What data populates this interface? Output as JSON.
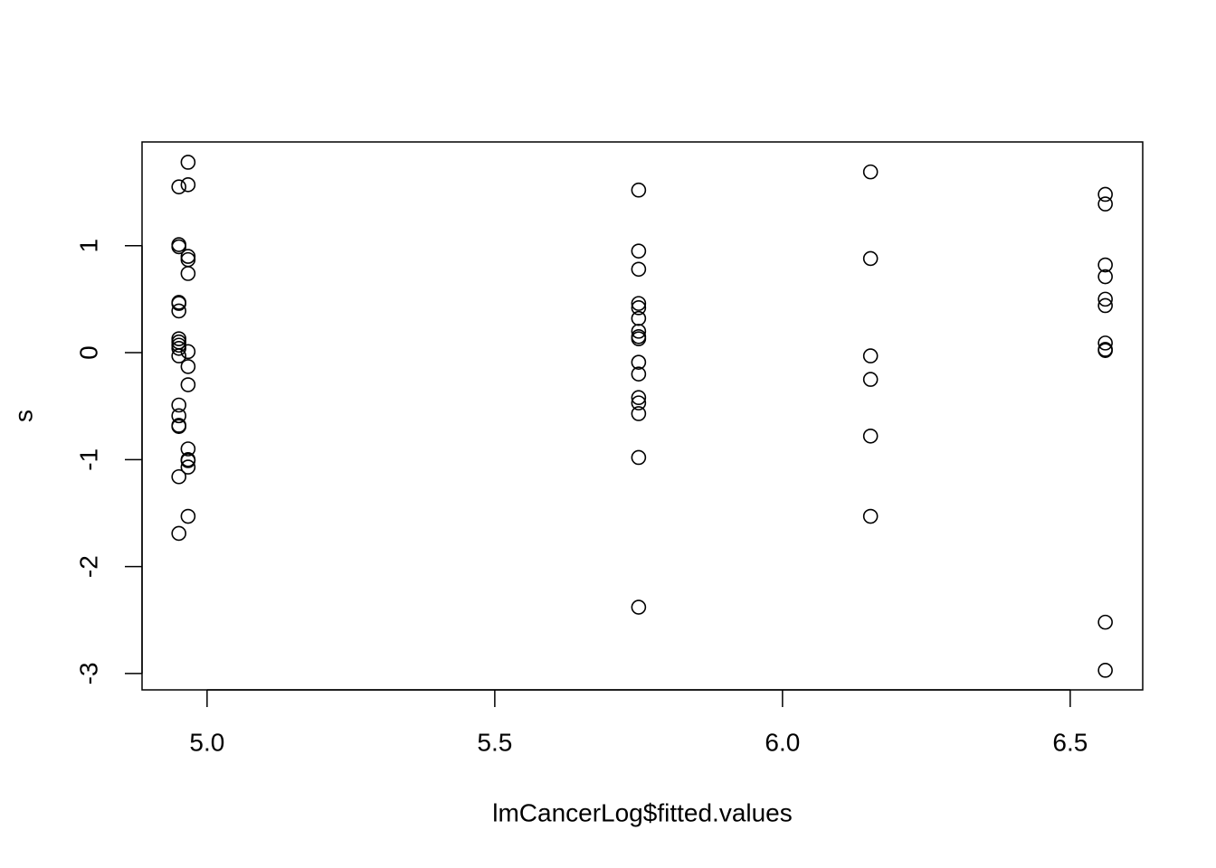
{
  "chart_data": {
    "type": "scatter",
    "x_label": "lmCancerLog$fitted.values",
    "y_label": "s",
    "color": "#000000",
    "xlim": [
      4.887,
      6.626
    ],
    "ylim": [
      -3.153,
      1.97
    ],
    "xticks": [
      {
        "value": 5,
        "label": "5.0"
      },
      5.5,
      {
        "value": 6,
        "label": "6.0"
      },
      6.5
    ],
    "yticks": [
      -3,
      -2,
      -1,
      0,
      1
    ],
    "x": [
      4.951,
      4.951,
      4.951,
      4.951,
      4.951,
      4.951,
      4.951,
      4.951,
      4.951,
      4.951,
      4.951,
      4.951,
      4.951,
      4.951,
      4.951,
      4.951,
      4.951,
      4.967,
      4.967,
      4.967,
      4.967,
      4.967,
      4.967,
      4.967,
      4.967,
      4.967,
      4.967,
      4.967,
      4.967,
      4.967,
      5.75,
      5.75,
      5.75,
      5.75,
      5.75,
      5.75,
      5.75,
      5.75,
      5.75,
      5.75,
      5.75,
      5.75,
      5.75,
      5.75,
      5.75,
      5.75,
      6.153,
      6.153,
      6.153,
      6.153,
      6.153,
      6.153,
      6.561,
      6.561,
      6.561,
      6.561,
      6.561,
      6.561,
      6.561,
      6.561,
      6.561,
      6.561,
      6.561
    ],
    "y": [
      1.55,
      1.01,
      0.99,
      0.47,
      0.46,
      0.39,
      0.13,
      0.1,
      0.07,
      0.04,
      -0.03,
      -0.49,
      -0.59,
      -0.68,
      -0.69,
      -1.16,
      -1.69,
      1.78,
      1.57,
      0.9,
      0.87,
      0.74,
      0.01,
      -0.13,
      -0.3,
      -0.9,
      -1.0,
      -1.01,
      -1.07,
      -1.53,
      1.52,
      0.95,
      0.78,
      0.46,
      0.42,
      0.32,
      0.2,
      0.15,
      0.13,
      -0.09,
      -0.2,
      -0.42,
      -0.47,
      -0.57,
      -0.98,
      -2.38,
      1.69,
      0.88,
      -0.03,
      -0.25,
      -0.78,
      -1.53,
      1.48,
      1.39,
      0.82,
      0.71,
      0.5,
      0.44,
      0.09,
      0.03,
      0.02,
      -2.52,
      -2.97
    ]
  }
}
